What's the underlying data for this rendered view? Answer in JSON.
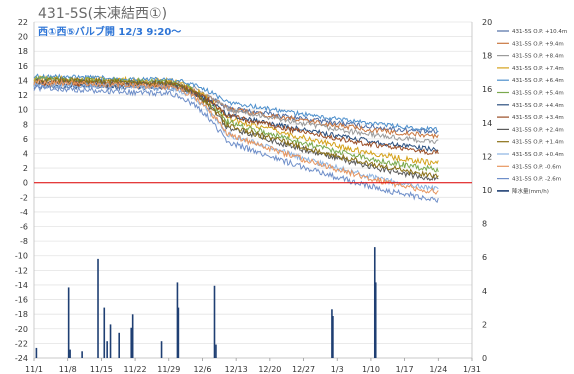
{
  "chart_data": {
    "type": "line",
    "title": "431-5S(未凍結西①)",
    "subtitle": "西①西⑤バルブ開 12/3 9:20〜",
    "x_tick_labels": [
      "11/1",
      "11/8",
      "11/15",
      "11/22",
      "11/29",
      "12/6",
      "12/13",
      "12/20",
      "12/27",
      "1/3",
      "1/10",
      "1/17",
      "1/24",
      "1/31"
    ],
    "x_range_days": [
      0,
      91
    ],
    "y_left": {
      "ylim": [
        -24,
        22
      ],
      "ticks": [
        22,
        20,
        18,
        16,
        14,
        12,
        10,
        8,
        6,
        4,
        2,
        0,
        -2,
        -4,
        -6,
        -8,
        -10,
        -12,
        -14,
        -16,
        -18,
        -20,
        -22,
        -24
      ]
    },
    "y_right": {
      "ylim": [
        0,
        20
      ],
      "ticks": [
        20,
        18,
        16,
        14,
        12,
        10,
        8,
        6,
        4,
        2,
        0
      ]
    },
    "reference_line": {
      "y": 0,
      "color": "#e00000"
    },
    "grid": "horizontal",
    "legend_position": "right",
    "series": [
      {
        "name": "431-5S O.P. +10.4m",
        "color": "#4f6ea5",
        "start": 13.2,
        "plateau": 13.0,
        "end": 6.9,
        "noise": 0.35
      },
      {
        "name": "431-5S O.P. +9.4m",
        "color": "#c9763f",
        "start": 13.6,
        "plateau": 13.3,
        "end": 6.4,
        "noise": 0.35
      },
      {
        "name": "431-5S O.P. +8.4m",
        "color": "#9b9b9b",
        "start": 14.0,
        "plateau": 13.7,
        "end": 5.6,
        "noise": 0.35
      },
      {
        "name": "431-5S O.P. +7.4m",
        "color": "#d4a21b",
        "start": 14.3,
        "plateau": 13.9,
        "end": 2.7,
        "noise": 0.4
      },
      {
        "name": "431-5S O.P. +6.4m",
        "color": "#4d8fcc",
        "start": 14.6,
        "plateau": 14.1,
        "end": 7.3,
        "noise": 0.3
      },
      {
        "name": "431-5S O.P. +5.4m",
        "color": "#7aa94d",
        "start": 14.2,
        "plateau": 13.8,
        "end": 1.8,
        "noise": 0.4
      },
      {
        "name": "431-5S O.P. +4.4m",
        "color": "#2a4f7f",
        "start": 13.5,
        "plateau": 13.2,
        "end": 4.6,
        "noise": 0.35
      },
      {
        "name": "431-5S O.P. +3.4m",
        "color": "#9a4d25",
        "start": 13.7,
        "plateau": 13.4,
        "end": 4.1,
        "noise": 0.35
      },
      {
        "name": "431-5S O.P. +2.4m",
        "color": "#5b5b5b",
        "start": 13.9,
        "plateau": 13.5,
        "end": 0.6,
        "noise": 0.4
      },
      {
        "name": "431-5S O.P. +1.4m",
        "color": "#8a7016",
        "start": 14.1,
        "plateau": 13.6,
        "end": 1.0,
        "noise": 0.4
      },
      {
        "name": "431-5S O.P. +0.4m",
        "color": "#8db4e2",
        "start": 13.4,
        "plateau": 13.0,
        "end": -0.9,
        "noise": 0.4
      },
      {
        "name": "431-5S O.P. -0.6m",
        "color": "#e8965f",
        "start": 13.8,
        "plateau": 13.2,
        "end": -1.2,
        "noise": 0.4
      },
      {
        "name": "431-5S O.P. -2.6m",
        "color": "#6f8fc9",
        "start": 13.0,
        "plateau": 12.2,
        "end": -2.3,
        "noise": 0.4
      }
    ],
    "bar_series": {
      "name": "降水量(mm/h)",
      "axis": "right",
      "color": "#1f3f73",
      "points": [
        [
          0.5,
          0.6
        ],
        [
          7.2,
          4.2
        ],
        [
          7.5,
          0.5
        ],
        [
          10.0,
          0.4
        ],
        [
          13.3,
          5.9
        ],
        [
          14.6,
          3.0
        ],
        [
          15.2,
          1.0
        ],
        [
          15.9,
          2.0
        ],
        [
          17.7,
          1.5
        ],
        [
          20.2,
          1.8
        ],
        [
          20.5,
          2.6
        ],
        [
          26.5,
          1.0
        ],
        [
          29.8,
          4.5
        ],
        [
          30.0,
          3.0
        ],
        [
          37.5,
          4.3
        ],
        [
          37.8,
          0.8
        ],
        [
          61.9,
          2.9
        ],
        [
          62.1,
          2.5
        ],
        [
          70.8,
          6.6
        ],
        [
          71.0,
          4.5
        ]
      ]
    }
  }
}
